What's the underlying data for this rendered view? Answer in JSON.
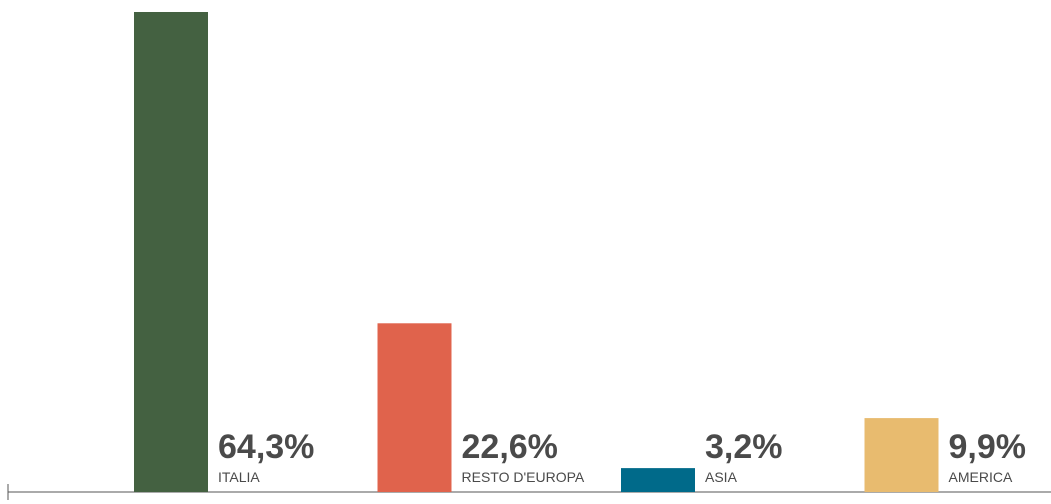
{
  "chart_data": {
    "type": "bar",
    "categories": [
      "ITALIA",
      "RESTO D'EUROPA",
      "ASIA",
      "AMERICA"
    ],
    "values": [
      64.3,
      22.6,
      3.2,
      9.9
    ],
    "value_labels": [
      "64,3%",
      "22,6%",
      "3,2%",
      "9,9%"
    ],
    "colors": [
      "#446141",
      "#e0634c",
      "#006a8a",
      "#e8bb6f"
    ],
    "ylim": [
      0,
      64.3
    ]
  }
}
